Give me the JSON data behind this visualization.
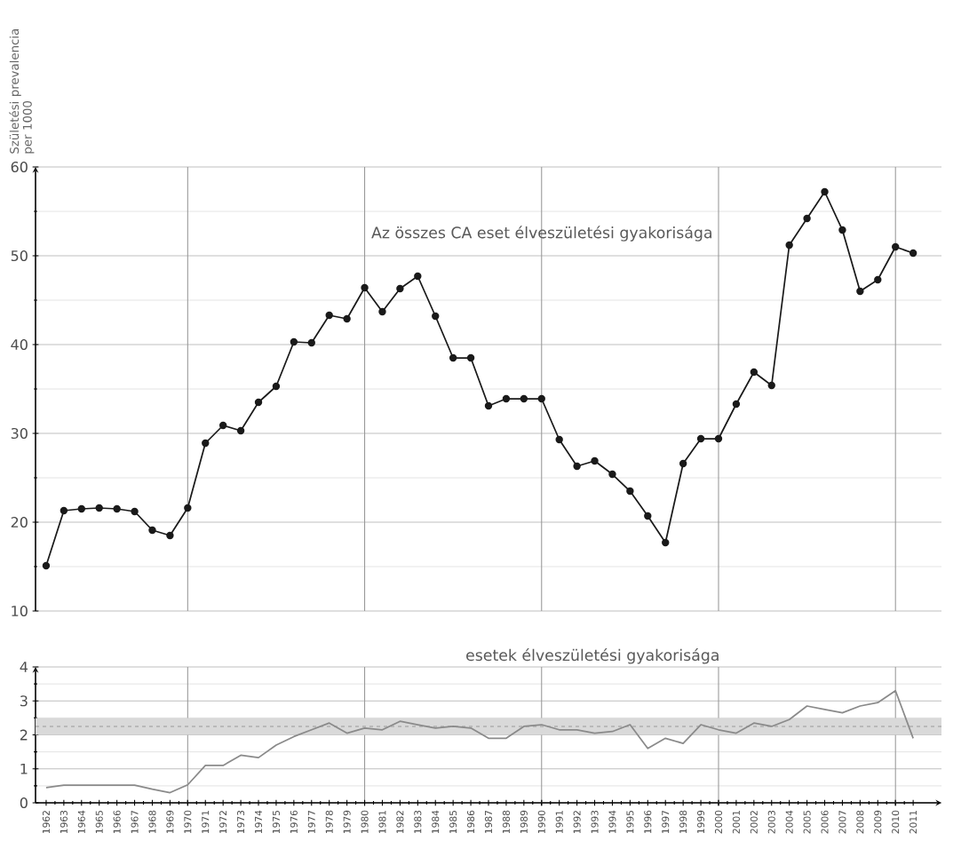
{
  "chart_data": [
    {
      "type": "line",
      "ylabel": "Születési prevalencia per 1000",
      "annotations": [
        "Az összes CA eset élveszületési gyakorisága"
      ],
      "categories": [
        "1962",
        "1963",
        "1964",
        "1965",
        "1966",
        "1967",
        "1968",
        "1969",
        "1970",
        "1971",
        "1972",
        "1973",
        "1974",
        "1975",
        "1976",
        "1977",
        "1978",
        "1979",
        "1980",
        "1981",
        "1982",
        "1983",
        "1984",
        "1985",
        "1986",
        "1987",
        "1988",
        "1989",
        "1990",
        "1991",
        "1992",
        "1993",
        "1994",
        "1995",
        "1996",
        "1997",
        "1998",
        "1999",
        "2000",
        "2001",
        "2002",
        "2003",
        "2004",
        "2005",
        "2006",
        "2007",
        "2008",
        "2009",
        "2010",
        "2011"
      ],
      "series": [
        {
          "color": "#1a1a1a",
          "marker": "circle",
          "values": [
            15.1,
            21.3,
            21.5,
            21.6,
            21.5,
            21.2,
            19.1,
            18.5,
            21.6,
            28.9,
            30.9,
            30.3,
            33.5,
            35.3,
            40.3,
            40.2,
            43.3,
            42.9,
            46.4,
            43.7,
            46.3,
            47.7,
            43.2,
            38.5,
            38.5,
            33.1,
            33.9,
            33.9,
            33.9,
            29.3,
            26.3,
            26.9,
            25.4,
            23.5,
            20.7,
            17.7,
            26.6,
            29.4,
            29.4,
            33.3,
            36.9,
            35.4,
            51.2,
            54.2,
            57.2,
            52.9,
            46.0,
            47.3,
            51.0,
            50.3
          ]
        }
      ],
      "ylim": [
        10,
        60
      ],
      "yticks": [
        10,
        20,
        30,
        40,
        50,
        60
      ],
      "grid": true,
      "tick_labels": "y"
    },
    {
      "type": "line",
      "annotations": [
        "esetek élveszületési gyakorisága"
      ],
      "categories": [
        "1962",
        "1963",
        "1964",
        "1965",
        "1966",
        "1967",
        "1968",
        "1969",
        "1970",
        "1971",
        "1972",
        "1973",
        "1974",
        "1975",
        "1976",
        "1977",
        "1978",
        "1979",
        "1980",
        "1981",
        "1982",
        "1983",
        "1984",
        "1985",
        "1986",
        "1987",
        "1988",
        "1989",
        "1990",
        "1991",
        "1992",
        "1993",
        "1994",
        "1995",
        "1996",
        "1997",
        "1998",
        "1999",
        "2000",
        "2001",
        "2002",
        "2003",
        "2004",
        "2005",
        "2006",
        "2007",
        "2008",
        "2009",
        "2010",
        "2011"
      ],
      "series": [
        {
          "color": "#8a8a8a",
          "marker": "none",
          "values": [
            0.45,
            0.52,
            0.52,
            0.52,
            0.52,
            0.52,
            0.4,
            0.3,
            0.53,
            1.1,
            1.1,
            1.4,
            1.33,
            1.7,
            1.95,
            2.15,
            2.35,
            2.05,
            2.2,
            2.15,
            2.4,
            2.3,
            2.2,
            2.25,
            2.2,
            1.9,
            1.9,
            2.25,
            2.3,
            2.15,
            2.15,
            2.05,
            2.1,
            2.3,
            1.6,
            1.9,
            1.75,
            2.3,
            2.15,
            2.05,
            2.35,
            2.25,
            2.45,
            2.85,
            2.75,
            2.65,
            2.85,
            2.95,
            3.3,
            1.9
          ]
        }
      ],
      "bands": [
        {
          "axis": "y",
          "from": 2,
          "to": 2.5,
          "color": "#d9d9d9"
        }
      ],
      "ref_lines": [
        {
          "axis": "y",
          "value": 2.25,
          "color": "#9a9a9a",
          "line_style": "dashed"
        }
      ],
      "ylim": [
        0,
        4
      ],
      "yticks": [
        0,
        1,
        2,
        3,
        4
      ],
      "grid": true
    }
  ]
}
